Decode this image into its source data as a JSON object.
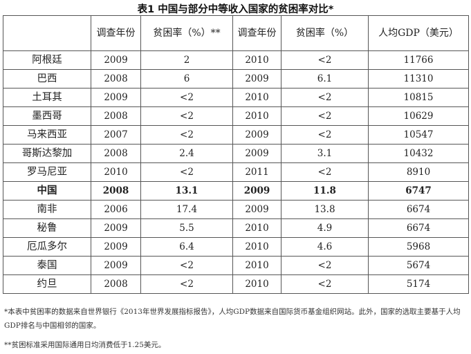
{
  "title": "表1 中国与部分中等收入国家的贫困率对比*",
  "headers": [
    "",
    "调查年份",
    "贫困率（%）**",
    "调查年份",
    "贫困率（%）",
    "人均GDP（美元）"
  ],
  "rows": [
    {
      "country": "阿根廷",
      "year1": "2009",
      "rate1": "2",
      "year2": "2010",
      "rate2": "<2",
      "gdp": "11766"
    },
    {
      "country": "巴西",
      "year1": "2008",
      "rate1": "6",
      "year2": "2009",
      "rate2": "6.1",
      "gdp": "11310"
    },
    {
      "country": "土耳其",
      "year1": "2009",
      "rate1": "<2",
      "year2": "2010",
      "rate2": "<2",
      "gdp": "10815"
    },
    {
      "country": "墨西哥",
      "year1": "2008",
      "rate1": "<2",
      "year2": "2010",
      "rate2": "<2",
      "gdp": "10629"
    },
    {
      "country": "马来西亚",
      "year1": "2007",
      "rate1": "<2",
      "year2": "2009",
      "rate2": "<2",
      "gdp": "10547"
    },
    {
      "country": "哥斯达黎加",
      "year1": "2008",
      "rate1": "2.4",
      "year2": "2009",
      "rate2": "3.1",
      "gdp": "10432"
    },
    {
      "country": "罗马尼亚",
      "year1": "2010",
      "rate1": "<2",
      "year2": "2011",
      "rate2": "<2",
      "gdp": "8910"
    },
    {
      "country": "中国",
      "year1": "2008",
      "rate1": "13.1",
      "year2": "2009",
      "rate2": "11.8",
      "gdp": "6747",
      "bold": true
    },
    {
      "country": "南非",
      "year1": "2006",
      "rate1": "17.4",
      "year2": "2009",
      "rate2": "13.8",
      "gdp": "6674"
    },
    {
      "country": "秘鲁",
      "year1": "2009",
      "rate1": "5.5",
      "year2": "2010",
      "rate2": "4.9",
      "gdp": "6674"
    },
    {
      "country": "厄瓜多尔",
      "year1": "2009",
      "rate1": "6.4",
      "year2": "2010",
      "rate2": "4.6",
      "gdp": "5968"
    },
    {
      "country": "泰国",
      "year1": "2009",
      "rate1": "<2",
      "year2": "2010",
      "rate2": "<2",
      "gdp": "5674"
    },
    {
      "country": "约旦",
      "year1": "2008",
      "rate1": "<2",
      "year2": "2010",
      "rate2": "<2",
      "gdp": "5174"
    }
  ],
  "notes": {
    "note1": "*本表中贫困率的数据来自世界银行《2013年世界发展指标报告》，人均GDP数据来自国际货币基金组织网站。此外，国家的选取主要基于人均GDP排名与中国相邻的国家。",
    "note2": "**贫困标准采用国际通用日均消费低于1.25美元。"
  }
}
